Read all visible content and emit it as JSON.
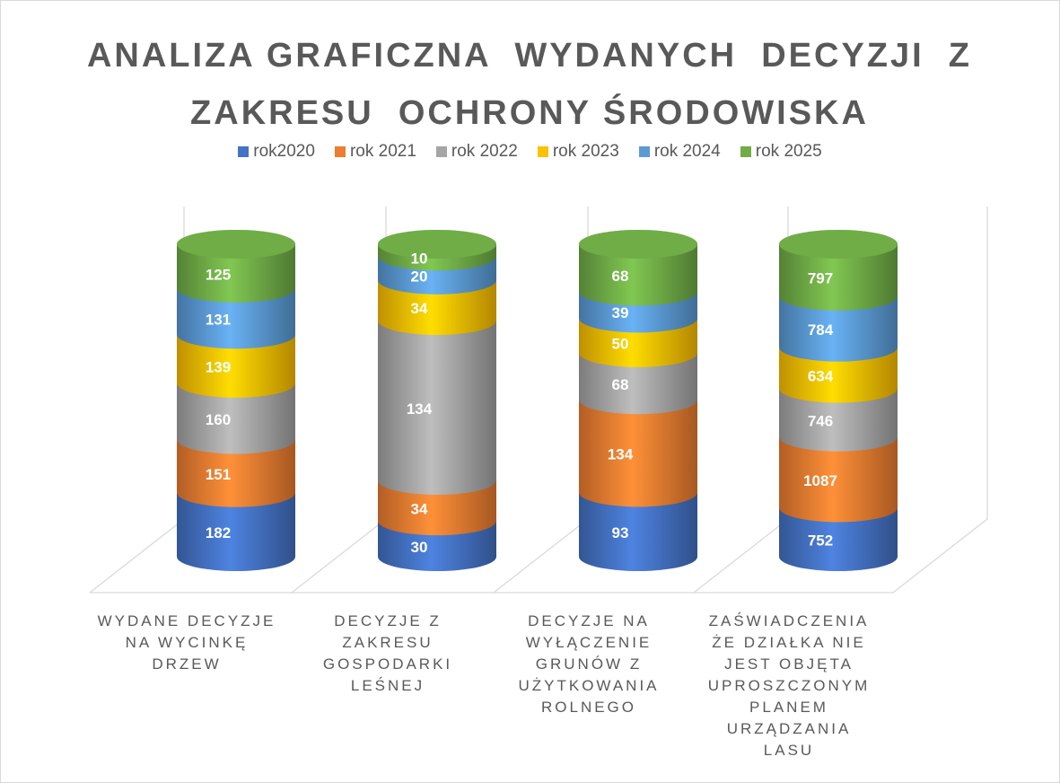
{
  "chart_data": {
    "type": "bar",
    "stacking": "percent",
    "title": "ANALIZA GRAFICZNA  WYDANYCH  DECYZJI  Z ZAKRESU  OCHRONY ŚRODOWISKA",
    "categories": [
      "WYDANE DECYZJE NA WYCINKĘ DRZEW",
      "DECYZJE Z ZAKRESU GOSPODARKI LEŚNEJ",
      "DECYZJE NA WYŁĄCZENIE GRUNÓW Z UŻYTKOWANIA ROLNEGO",
      "ZAŚWIADCZENIA ŻE DZIAŁKA NIE JEST OBJĘTA UPROSZCZONYM PLANEM URZĄDZANIA LASU"
    ],
    "series": [
      {
        "name": "rok2020",
        "color": "#4472c4",
        "values": [
          182,
          30,
          93,
          752
        ]
      },
      {
        "name": "rok 2021",
        "color": "#ed7d31",
        "values": [
          151,
          34,
          134,
          1087
        ]
      },
      {
        "name": "rok 2022",
        "color": "#a5a5a5",
        "values": [
          160,
          134,
          68,
          746
        ]
      },
      {
        "name": "rok 2023",
        "color": "#ffc000",
        "values": [
          139,
          34,
          50,
          634
        ]
      },
      {
        "name": "rok 2024",
        "color": "#5b9bd5",
        "values": [
          131,
          20,
          39,
          784
        ]
      },
      {
        "name": "rok 2025",
        "color": "#70ad47",
        "values": [
          125,
          10,
          68,
          797
        ]
      }
    ],
    "legend": "top"
  }
}
